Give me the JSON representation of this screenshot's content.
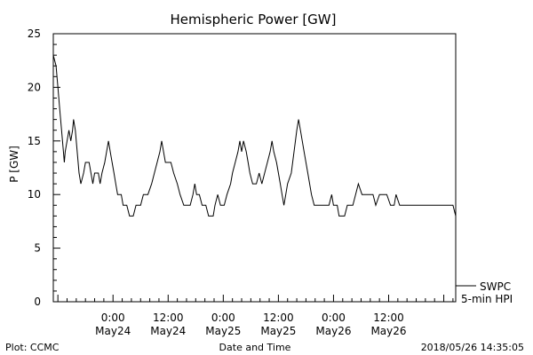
{
  "chart_data": {
    "type": "line",
    "title": "Hemispheric Power [GW]",
    "ylabel": "P [GW]",
    "xlabel": "Date and Time",
    "ylim": [
      0,
      25
    ],
    "y_ticks": [
      0,
      5,
      10,
      15,
      20,
      25
    ],
    "x_range_hours": [
      -6.5,
      37.3
    ],
    "x_ticks": [
      {
        "hour": 0,
        "time": "0:00",
        "date": "May24"
      },
      {
        "hour": 6,
        "time": "12:00",
        "date": "May24"
      },
      {
        "hour": 12,
        "time": "0:00",
        "date": "May25"
      },
      {
        "hour": 18,
        "time": "12:00",
        "date": "May25"
      },
      {
        "hour": 24,
        "time": "0:00",
        "date": "May26"
      },
      {
        "hour": 30,
        "time": "12:00",
        "date": "May26"
      }
    ],
    "grid": false,
    "series": [
      {
        "name": "SWPC",
        "legend_sub": "5-min HPI",
        "color": "#000000",
        "points": [
          [
            -6.5,
            23
          ],
          [
            -6.2,
            22
          ],
          [
            -6.0,
            20
          ],
          [
            -5.8,
            18
          ],
          [
            -5.6,
            16
          ],
          [
            -5.4,
            14
          ],
          [
            -5.3,
            13
          ],
          [
            -5.2,
            14
          ],
          [
            -5.0,
            15
          ],
          [
            -4.8,
            16
          ],
          [
            -4.6,
            15
          ],
          [
            -4.4,
            16
          ],
          [
            -4.3,
            17
          ],
          [
            -4.1,
            16
          ],
          [
            -3.9,
            14
          ],
          [
            -3.7,
            12
          ],
          [
            -3.5,
            11
          ],
          [
            -3.2,
            12
          ],
          [
            -3.0,
            13
          ],
          [
            -2.6,
            13
          ],
          [
            -2.4,
            12
          ],
          [
            -2.2,
            11
          ],
          [
            -2.0,
            12
          ],
          [
            -1.6,
            12
          ],
          [
            -1.4,
            11
          ],
          [
            -1.2,
            12
          ],
          [
            -0.9,
            13
          ],
          [
            -0.7,
            14
          ],
          [
            -0.5,
            15
          ],
          [
            -0.3,
            14
          ],
          [
            -0.1,
            13
          ],
          [
            0.1,
            12
          ],
          [
            0.3,
            11
          ],
          [
            0.5,
            10
          ],
          [
            0.9,
            10
          ],
          [
            1.1,
            9
          ],
          [
            1.5,
            9
          ],
          [
            1.8,
            8
          ],
          [
            2.2,
            8
          ],
          [
            2.5,
            9
          ],
          [
            3.0,
            9
          ],
          [
            3.3,
            10
          ],
          [
            3.8,
            10
          ],
          [
            4.2,
            11
          ],
          [
            4.5,
            12
          ],
          [
            4.8,
            13
          ],
          [
            5.1,
            14
          ],
          [
            5.3,
            15
          ],
          [
            5.5,
            14
          ],
          [
            5.7,
            13
          ],
          [
            6.3,
            13
          ],
          [
            6.6,
            12
          ],
          [
            7.0,
            11
          ],
          [
            7.3,
            10
          ],
          [
            7.7,
            9
          ],
          [
            8.4,
            9
          ],
          [
            8.7,
            10
          ],
          [
            8.9,
            11
          ],
          [
            9.1,
            10
          ],
          [
            9.4,
            10
          ],
          [
            9.7,
            9
          ],
          [
            10.1,
            9
          ],
          [
            10.4,
            8
          ],
          [
            10.9,
            8
          ],
          [
            11.1,
            9
          ],
          [
            11.4,
            10
          ],
          [
            11.7,
            9
          ],
          [
            12.1,
            9
          ],
          [
            12.4,
            10
          ],
          [
            12.8,
            11
          ],
          [
            13.0,
            12
          ],
          [
            13.3,
            13
          ],
          [
            13.6,
            14
          ],
          [
            13.8,
            15
          ],
          [
            14.0,
            14
          ],
          [
            14.2,
            15
          ],
          [
            14.5,
            14
          ],
          [
            14.7,
            13
          ],
          [
            14.9,
            12
          ],
          [
            15.2,
            11
          ],
          [
            15.6,
            11
          ],
          [
            15.9,
            12
          ],
          [
            16.2,
            11
          ],
          [
            16.5,
            12
          ],
          [
            16.8,
            13
          ],
          [
            17.1,
            14
          ],
          [
            17.3,
            15
          ],
          [
            17.5,
            14
          ],
          [
            17.8,
            13
          ],
          [
            18.0,
            12
          ],
          [
            18.2,
            11
          ],
          [
            18.4,
            10
          ],
          [
            18.6,
            9
          ],
          [
            18.8,
            10
          ],
          [
            19.0,
            11
          ],
          [
            19.4,
            12
          ],
          [
            19.7,
            14
          ],
          [
            20.0,
            16
          ],
          [
            20.2,
            17
          ],
          [
            20.4,
            16
          ],
          [
            20.8,
            14
          ],
          [
            21.2,
            12
          ],
          [
            21.6,
            10
          ],
          [
            21.9,
            9
          ],
          [
            22.2,
            9
          ],
          [
            23.0,
            9
          ],
          [
            23.5,
            9
          ],
          [
            23.8,
            10
          ],
          [
            24.0,
            9
          ],
          [
            24.4,
            9
          ],
          [
            24.6,
            8
          ],
          [
            25.2,
            8
          ],
          [
            25.5,
            9
          ],
          [
            26.1,
            9
          ],
          [
            26.4,
            10
          ],
          [
            26.7,
            11
          ],
          [
            27.1,
            10
          ],
          [
            28.3,
            10
          ],
          [
            28.6,
            9
          ],
          [
            29.0,
            10
          ],
          [
            29.8,
            10
          ],
          [
            30.2,
            9
          ],
          [
            30.6,
            9
          ],
          [
            30.8,
            10
          ],
          [
            31.2,
            9
          ],
          [
            32.0,
            9
          ],
          [
            32.8,
            9
          ],
          [
            33.3,
            9
          ],
          [
            34.0,
            9
          ],
          [
            35.0,
            9
          ],
          [
            36.0,
            9
          ],
          [
            37.0,
            9
          ],
          [
            37.3,
            8
          ]
        ]
      }
    ]
  },
  "footer": {
    "left": "Plot: CCMC",
    "center": "Date and Time",
    "right": "2018/05/26 14:35:05"
  }
}
